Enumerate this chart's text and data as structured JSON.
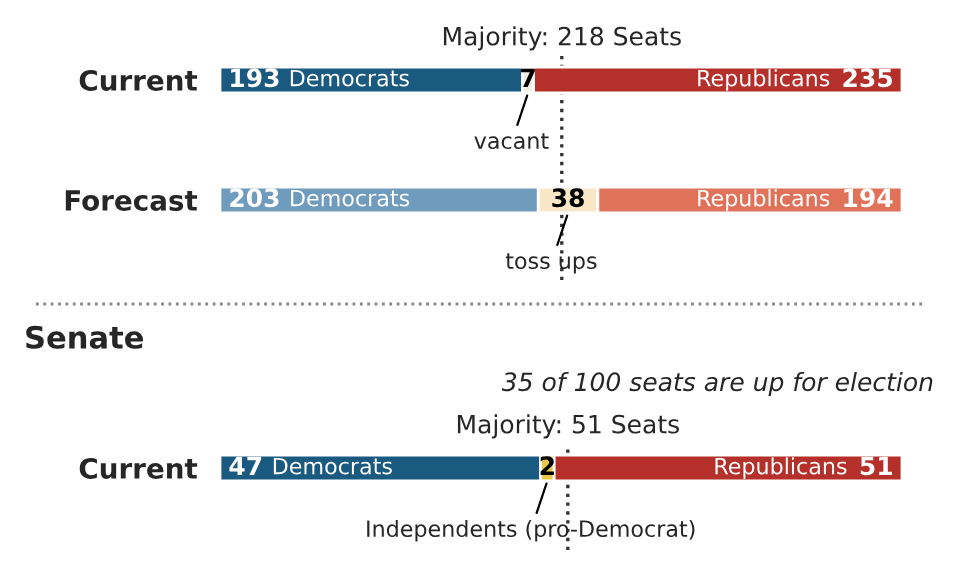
{
  "chart_data": [
    {
      "type": "bar",
      "orientation": "horizontal",
      "stacked": true,
      "categories": [
        "Current",
        "Forecast"
      ],
      "series": [
        {
          "name": "Democrats",
          "colors": [
            "#1b5a80",
            "#6f9bbd"
          ],
          "values": [
            193,
            203
          ]
        },
        {
          "colors": [
            "#f2efe6",
            "#f7e7c6"
          ],
          "values": [
            7,
            38
          ]
        },
        {
          "name": "Republicans",
          "colors": [
            "#b5302a",
            "#e0725a"
          ],
          "values": [
            235,
            194
          ]
        }
      ],
      "data_labels": true,
      "tick_labels": "y",
      "ref_lines": [
        {
          "axis": "x",
          "value": 218,
          "label": "Majority: 218 Seats",
          "line_style": "dotted",
          "color": "#333333"
        }
      ],
      "annotations": [
        {
          "text": "vacant",
          "x": 196.5,
          "y": "Current"
        },
        {
          "text": "toss ups",
          "x": 222,
          "y": "Forecast"
        }
      ]
    },
    {
      "type": "bar",
      "orientation": "horizontal",
      "stacked": true,
      "categories": [
        "Current"
      ],
      "title": "Senate",
      "subtitle": "35 of 100 seats are up for election",
      "series": [
        {
          "name": "Democrats",
          "colors": [
            "#1b5a80"
          ],
          "values": [
            47
          ]
        },
        {
          "colors": [
            "#e8c64a"
          ],
          "values": [
            2
          ]
        },
        {
          "name": "Republicans",
          "colors": [
            "#b5302a"
          ],
          "values": [
            51
          ]
        }
      ],
      "data_labels": true,
      "tick_labels": "y",
      "ref_lines": [
        {
          "axis": "x",
          "value": 51,
          "label": "Majority: 51 Seats",
          "line_style": "dotted",
          "color": "#333333"
        }
      ],
      "annotations": [
        {
          "text": "Independents (pro-Democrat)",
          "x": 48,
          "y": "Current"
        }
      ]
    }
  ]
}
